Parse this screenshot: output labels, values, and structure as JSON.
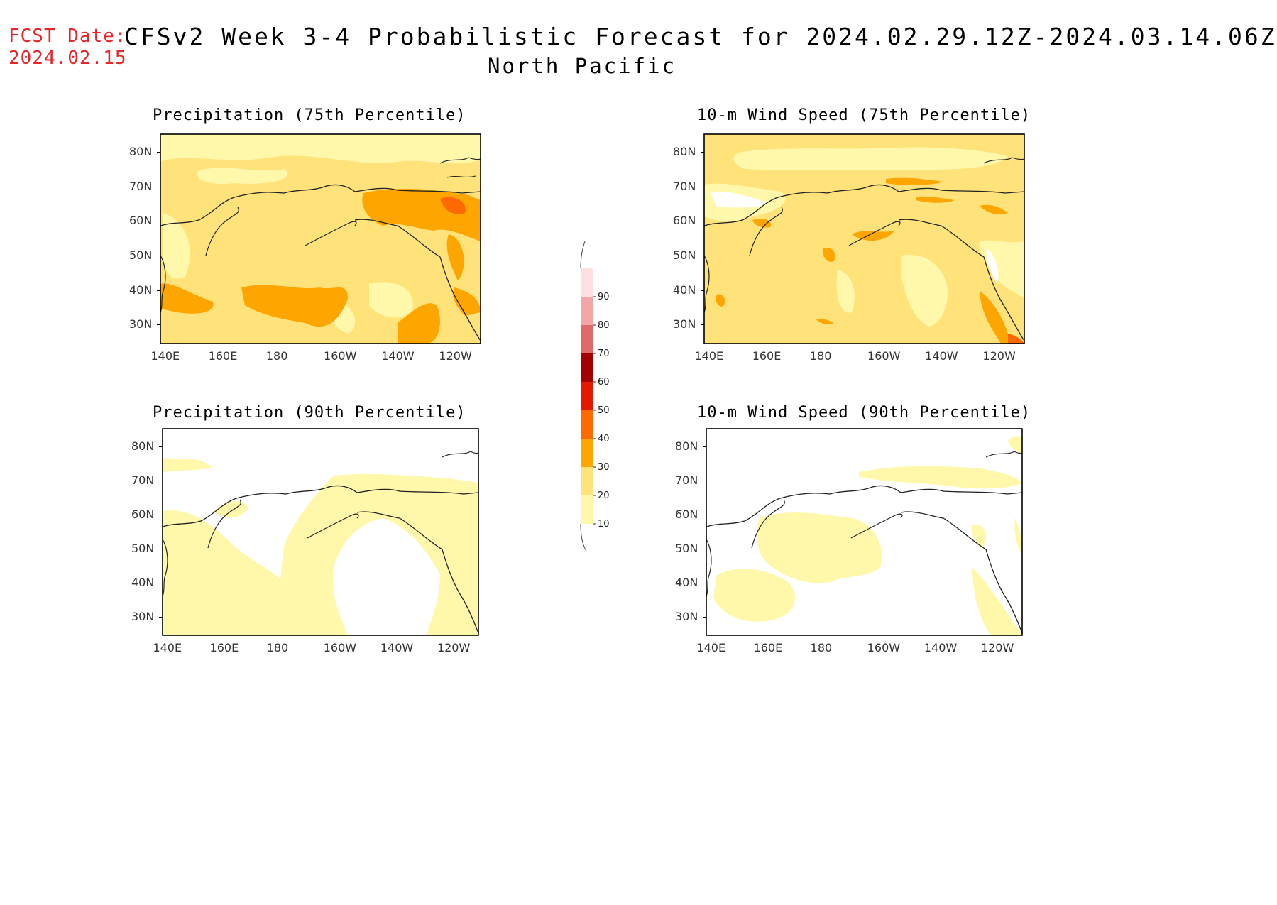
{
  "header": {
    "fcst_label": "FCST Date:",
    "fcst_date": "2024.02.15",
    "title": "CFSv2 Week 3-4 Probabilistic Forecast for 2024.02.29.12Z-2024.03.14.06Z",
    "subtitle": "North Pacific"
  },
  "axes": {
    "lon_labels": [
      "140E",
      "160E",
      "180",
      "160W",
      "140W",
      "120W"
    ],
    "lat_labels": [
      "80N",
      "70N",
      "60N",
      "50N",
      "40N",
      "30N"
    ]
  },
  "panels": [
    {
      "id": "precip-75",
      "title": "Precipitation (75th Percentile)"
    },
    {
      "id": "wind-75",
      "title": "10-m Wind Speed (75th Percentile)"
    },
    {
      "id": "precip-90",
      "title": "Precipitation (90th Percentile)"
    },
    {
      "id": "wind-90",
      "title": "10-m Wind Speed (90th Percentile)"
    }
  ],
  "colorbar": {
    "levels": [
      "10",
      "20",
      "30",
      "40",
      "50",
      "60",
      "70",
      "80",
      "90"
    ],
    "colors": [
      "#fff7aa",
      "#ffe27a",
      "#ffa500",
      "#ff6a00",
      "#e41a00",
      "#a50000",
      "#e06a6a",
      "#f4a5a5",
      "#ffe0e0"
    ]
  },
  "chart_data": [
    {
      "type": "heatmap",
      "title": "Precipitation (75th Percentile)",
      "x_ticks": [
        "140E",
        "160E",
        "180",
        "160W",
        "140W",
        "120W"
      ],
      "y_ticks": [
        "80N",
        "70N",
        "60N",
        "50N",
        "40N",
        "30N"
      ],
      "dominant_category": "20-30"
    },
    {
      "type": "heatmap",
      "title": "10-m Wind Speed (75th Percentile)",
      "x_ticks": [
        "140E",
        "160E",
        "180",
        "160W",
        "140W",
        "120W"
      ],
      "y_ticks": [
        "80N",
        "70N",
        "60N",
        "50N",
        "40N",
        "30N"
      ],
      "dominant_category": "20-30"
    },
    {
      "type": "heatmap",
      "title": "Precipitation (90th Percentile)",
      "x_ticks": [
        "140E",
        "160E",
        "180",
        "160W",
        "140W",
        "120W"
      ],
      "y_ticks": [
        "80N",
        "70N",
        "60N",
        "50N",
        "40N",
        "30N"
      ],
      "dominant_category": "10-20"
    },
    {
      "type": "heatmap",
      "title": "10-m Wind Speed (90th Percentile)",
      "x_ticks": [
        "140E",
        "160E",
        "180",
        "160W",
        "140W",
        "120W"
      ],
      "y_ticks": [
        "80N",
        "70N",
        "60N",
        "50N",
        "40N",
        "30N"
      ],
      "dominant_category": "10-20"
    }
  ]
}
